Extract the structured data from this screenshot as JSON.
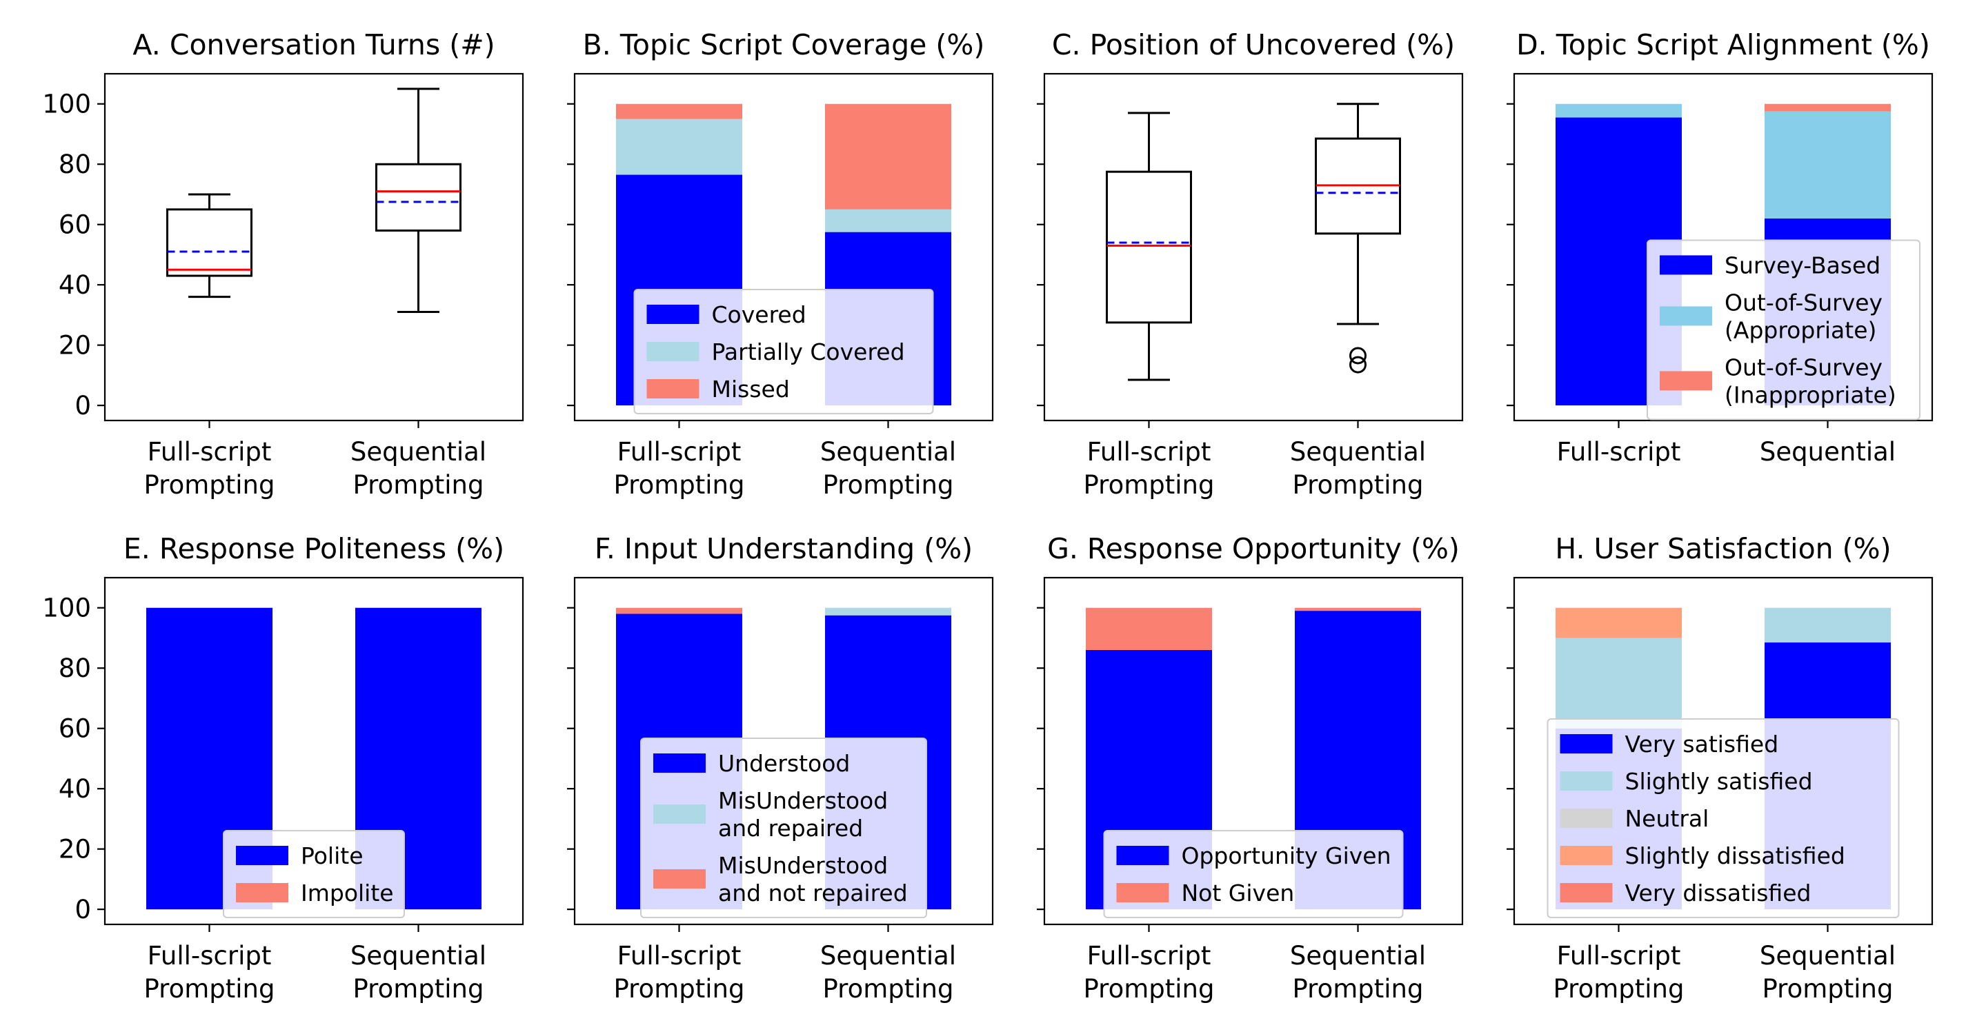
{
  "colors": {
    "blue": "#0000ff",
    "lightblue": "#add8e6",
    "skyblue": "#87ceeb",
    "salmon": "#fa8072",
    "lightsalmon": "#ffa07a",
    "lightgray": "#d3d3d3",
    "median": "#ff0000",
    "mean": "#0000ff",
    "legend_border": "#cccccc",
    "axis": "#000000"
  },
  "y_ticks": [
    0,
    20,
    40,
    60,
    80,
    100
  ],
  "chart_data": [
    {
      "id": "A",
      "type": "box",
      "title": "A. Conversation Turns (#)",
      "ylim": [
        -5,
        110
      ],
      "categories": [
        "Full-script\nPrompting",
        "Sequential\nPrompting"
      ],
      "boxes": [
        {
          "whislo": 36,
          "q1": 43,
          "med": 45,
          "mean": 51,
          "q3": 65,
          "whishi": 70,
          "fliers": []
        },
        {
          "whislo": 31,
          "q1": 58,
          "med": 71,
          "mean": 67.5,
          "q3": 80,
          "whishi": 105,
          "fliers": []
        }
      ]
    },
    {
      "id": "B",
      "type": "bar",
      "stacked": true,
      "title": "B. Topic Script Coverage (%)",
      "ylim": [
        -5,
        110
      ],
      "categories": [
        "Full-script\nPrompting",
        "Sequential\nPrompting"
      ],
      "series": [
        {
          "name": "Covered",
          "color": "blue",
          "values": [
            76.5,
            57.5
          ]
        },
        {
          "name": "Partially Covered",
          "color": "lightblue",
          "values": [
            18.5,
            7.5
          ]
        },
        {
          "name": "Missed",
          "color": "salmon",
          "values": [
            5,
            35
          ]
        }
      ],
      "legend": "lower-center"
    },
    {
      "id": "C",
      "type": "box",
      "title": "C. Position of Uncovered (%)",
      "ylim": [
        -5,
        110
      ],
      "categories": [
        "Full-script\nPrompting",
        "Sequential\nPrompting"
      ],
      "boxes": [
        {
          "whislo": 8.5,
          "q1": 27.5,
          "med": 53,
          "mean": 54,
          "q3": 77.5,
          "whishi": 97,
          "fliers": []
        },
        {
          "whislo": 27,
          "q1": 57,
          "med": 73,
          "mean": 70.5,
          "q3": 88.5,
          "whishi": 100,
          "fliers": [
            13.5,
            16.5
          ]
        }
      ]
    },
    {
      "id": "D",
      "type": "bar",
      "stacked": true,
      "title": "D. Topic Script Alignment (%)",
      "ylim": [
        -5,
        110
      ],
      "categories": [
        "Full-script",
        "Sequential"
      ],
      "series": [
        {
          "name": "Survey-Based",
          "color": "blue",
          "values": [
            95.5,
            62
          ]
        },
        {
          "name": "Out-of-Survey\n(Appropriate)",
          "color": "skyblue",
          "values": [
            4.5,
            35.5
          ]
        },
        {
          "name": "Out-of-Survey\n(Inappropriate)",
          "color": "salmon",
          "values": [
            0,
            2.5
          ]
        }
      ],
      "legend": "center-right"
    },
    {
      "id": "E",
      "type": "bar",
      "stacked": true,
      "title": "E. Response Politeness (%)",
      "ylim": [
        -5,
        110
      ],
      "categories": [
        "Full-script\nPrompting",
        "Sequential\nPrompting"
      ],
      "series": [
        {
          "name": "Polite",
          "color": "blue",
          "values": [
            100,
            100
          ]
        },
        {
          "name": "Impolite",
          "color": "salmon",
          "values": [
            0,
            0
          ]
        }
      ],
      "legend": "lower-center"
    },
    {
      "id": "F",
      "type": "bar",
      "stacked": true,
      "title": "F. Input Understanding (%)",
      "ylim": [
        -5,
        110
      ],
      "categories": [
        "Full-script\nPrompting",
        "Sequential\nPrompting"
      ],
      "series": [
        {
          "name": "Understood",
          "color": "blue",
          "values": [
            98,
            97.5
          ]
        },
        {
          "name": "MisUnderstood\nand repaired",
          "color": "lightblue",
          "values": [
            0,
            2.5
          ]
        },
        {
          "name": "MisUnderstood\nand not repaired",
          "color": "salmon",
          "values": [
            2,
            0
          ]
        }
      ],
      "legend": "lower-center"
    },
    {
      "id": "G",
      "type": "bar",
      "stacked": true,
      "title": "G. Response Opportunity (%)",
      "ylim": [
        -5,
        110
      ],
      "categories": [
        "Full-script\nPrompting",
        "Sequential\nPrompting"
      ],
      "series": [
        {
          "name": "Opportunity Given",
          "color": "blue",
          "values": [
            86,
            99
          ]
        },
        {
          "name": "Not Given",
          "color": "salmon",
          "values": [
            14,
            1
          ]
        }
      ],
      "legend": "lower-center"
    },
    {
      "id": "H",
      "type": "bar",
      "stacked": true,
      "title": "H. User Satisfaction (%)",
      "ylim": [
        -5,
        110
      ],
      "categories": [
        "Full-script\nPrompting",
        "Sequential\nPrompting"
      ],
      "series": [
        {
          "name": "Very satisfied",
          "color": "blue",
          "values": [
            60,
            88.5
          ]
        },
        {
          "name": "Slightly satisfied",
          "color": "lightblue",
          "values": [
            30,
            11.5
          ]
        },
        {
          "name": "Neutral",
          "color": "lightgray",
          "values": [
            0,
            0
          ]
        },
        {
          "name": "Slightly dissatisfied",
          "color": "lightsalmon",
          "values": [
            10,
            0
          ]
        },
        {
          "name": "Very dissatisfied",
          "color": "salmon",
          "values": [
            0,
            0
          ]
        }
      ],
      "legend": "lower-center"
    }
  ]
}
